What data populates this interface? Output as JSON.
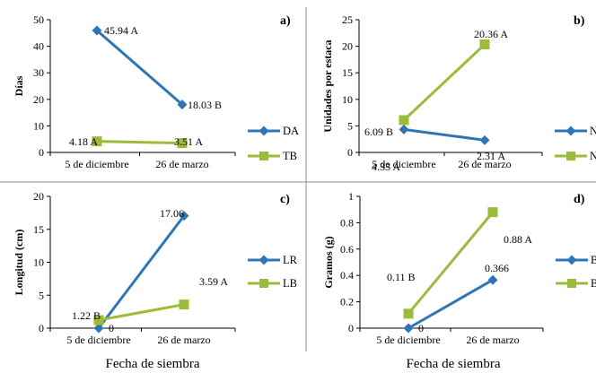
{
  "colors": {
    "blue": "#2E75B6",
    "green": "#9BBB3A"
  },
  "bottom_titles": {
    "left": "Fecha de siembra",
    "right": "Fecha de siembra"
  },
  "chart_data": [
    {
      "panel": "a)",
      "type": "line",
      "ylabel": "Días",
      "categories": [
        "5 de diciembre",
        "26 de marzo"
      ],
      "ylim": [
        0,
        50
      ],
      "yticks": [
        "0",
        "10",
        "20",
        "30",
        "40",
        "50"
      ],
      "series": [
        {
          "name": "DA",
          "values": [
            45.94,
            18.03
          ],
          "labels": [
            "45.94 A",
            "18.03 B"
          ],
          "color": "blue",
          "marker": "diamond"
        },
        {
          "name": "TB",
          "values": [
            4.18,
            3.51
          ],
          "labels": [
            "4.18 A",
            "3.51 A"
          ],
          "color": "green",
          "marker": "square"
        }
      ]
    },
    {
      "panel": "b)",
      "type": "line",
      "ylabel": "Unidades por estaca",
      "categories": [
        "5 de diciembre",
        "26 de marzo"
      ],
      "ylim": [
        0,
        25
      ],
      "yticks": [
        "0",
        "5",
        "10",
        "15",
        "20",
        "25"
      ],
      "series": [
        {
          "name": "NBA",
          "values": [
            4.33,
            2.31
          ],
          "labels": [
            "4.33 A",
            "2.31 A"
          ],
          "color": "blue",
          "marker": "diamond"
        },
        {
          "name": "NH",
          "values": [
            6.09,
            20.36
          ],
          "labels": [
            "6.09 B",
            "20.36 A"
          ],
          "color": "green",
          "marker": "square"
        }
      ]
    },
    {
      "panel": "c)",
      "type": "line",
      "ylabel": "Longitud (cm)",
      "categories": [
        "5 de diciembre",
        "26 de marzo"
      ],
      "ylim": [
        0,
        20
      ],
      "yticks": [
        "0",
        "5",
        "10",
        "15",
        "20"
      ],
      "series": [
        {
          "name": "LR",
          "values": [
            0,
            17.06
          ],
          "labels": [
            "0",
            "17.06"
          ],
          "color": "blue",
          "marker": "diamond"
        },
        {
          "name": "LB",
          "values": [
            1.22,
            3.59
          ],
          "labels": [
            "1.22 B",
            "3.59 A"
          ],
          "color": "green",
          "marker": "square"
        }
      ]
    },
    {
      "panel": "d)",
      "type": "line",
      "ylabel": "Gramos (g)",
      "categories": [
        "5 de diciembre",
        "26 de marzo"
      ],
      "ylim": [
        0,
        1
      ],
      "yticks": [
        "0",
        "0.2",
        "0.4",
        "0.6",
        "0.8",
        "1"
      ],
      "series": [
        {
          "name": "BF",
          "values": [
            0,
            0.366
          ],
          "labels": [
            "0",
            "0.366"
          ],
          "color": "blue",
          "marker": "diamond"
        },
        {
          "name": "BF",
          "values": [
            0.11,
            0.88
          ],
          "labels": [
            "0.11 B",
            "0.88 A"
          ],
          "color": "green",
          "marker": "square"
        }
      ]
    }
  ]
}
